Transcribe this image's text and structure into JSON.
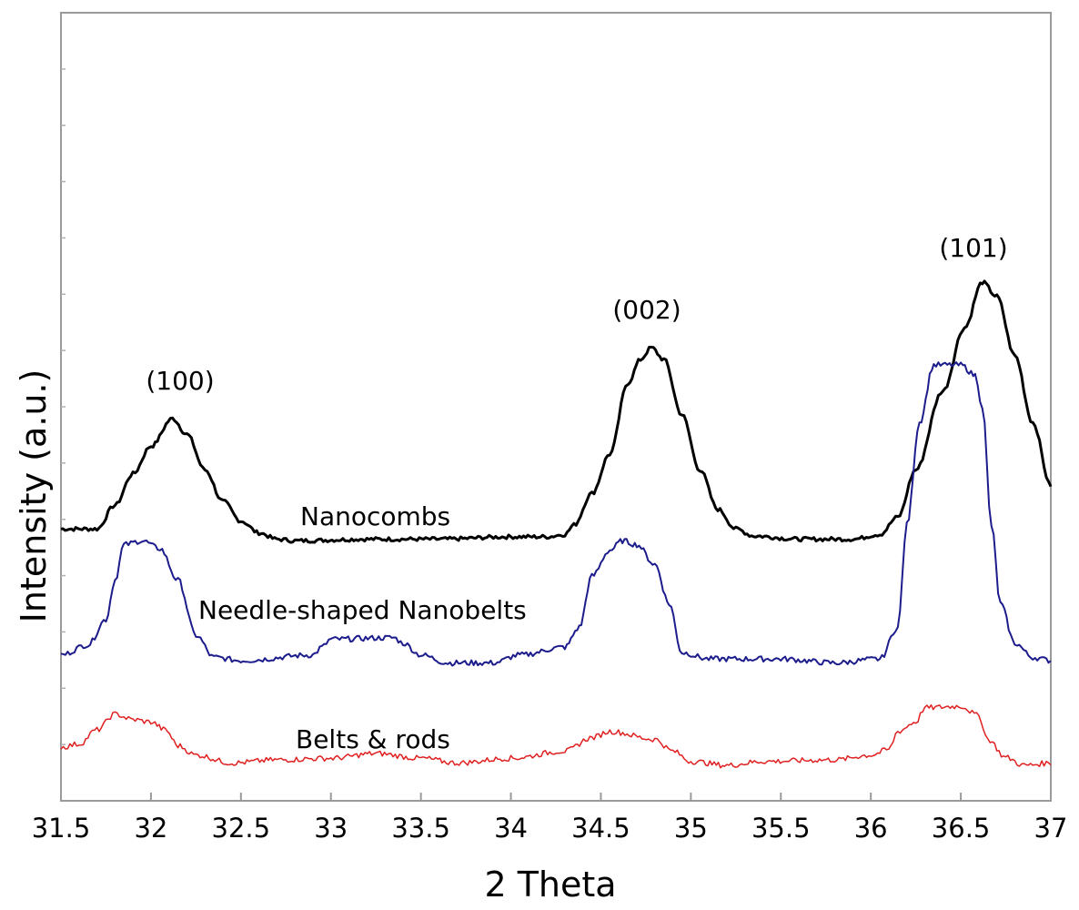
{
  "chart_data": {
    "type": "line",
    "title": "",
    "xlabel": "2 Theta",
    "ylabel": "Intensity (a.u.)",
    "xlim": [
      31.5,
      37
    ],
    "ylim": [
      0,
      100
    ],
    "xticks": [
      "31.5",
      "32",
      "32.5",
      "33",
      "33.5",
      "34",
      "34.5",
      "35",
      "35.5",
      "36",
      "36.5",
      "37"
    ],
    "grid": false,
    "series": [
      {
        "name": "Nanocombs",
        "label": "Nanocombs",
        "color": "#000000",
        "width": 3,
        "points": [
          [
            31.5,
            34.5
          ],
          [
            31.7,
            34.5
          ],
          [
            31.8,
            37.5
          ],
          [
            31.9,
            41.5
          ],
          [
            32.0,
            45.0
          ],
          [
            32.12,
            48.5
          ],
          [
            32.2,
            46.5
          ],
          [
            32.3,
            42.0
          ],
          [
            32.4,
            38.0
          ],
          [
            32.5,
            35.5
          ],
          [
            32.6,
            34.0
          ],
          [
            32.7,
            33.2
          ],
          [
            32.8,
            33.0
          ],
          [
            33.2,
            33.2
          ],
          [
            33.6,
            33.2
          ],
          [
            34.0,
            33.5
          ],
          [
            34.2,
            33.5
          ],
          [
            34.3,
            33.8
          ],
          [
            34.35,
            35.0
          ],
          [
            34.45,
            39.0
          ],
          [
            34.55,
            44.0
          ],
          [
            34.65,
            53.0
          ],
          [
            34.72,
            56.0
          ],
          [
            34.78,
            57.5
          ],
          [
            34.85,
            56.0
          ],
          [
            34.95,
            49.0
          ],
          [
            35.05,
            42.0
          ],
          [
            35.15,
            37.0
          ],
          [
            35.25,
            34.5
          ],
          [
            35.35,
            33.6
          ],
          [
            35.6,
            33.2
          ],
          [
            35.9,
            33.2
          ],
          [
            36.05,
            33.8
          ],
          [
            36.15,
            36.0
          ],
          [
            36.25,
            42.0
          ],
          [
            36.4,
            52.0
          ],
          [
            36.52,
            60.0
          ],
          [
            36.62,
            65.8
          ],
          [
            36.7,
            64.0
          ],
          [
            36.8,
            56.5
          ],
          [
            36.9,
            48.0
          ],
          [
            37.0,
            40.0
          ]
        ]
      },
      {
        "name": "Needle-shaped Nanobelts",
        "label": "Needle-shaped Nanobelts",
        "color": "#1c1c8c",
        "width": 2,
        "points": [
          [
            31.5,
            18.5
          ],
          [
            31.65,
            19.8
          ],
          [
            31.75,
            23.0
          ],
          [
            31.8,
            28.0
          ],
          [
            31.85,
            32.5
          ],
          [
            31.95,
            33.0
          ],
          [
            32.05,
            32.0
          ],
          [
            32.15,
            28.0
          ],
          [
            32.25,
            21.0
          ],
          [
            32.35,
            18.2
          ],
          [
            32.5,
            17.8
          ],
          [
            32.9,
            18.5
          ],
          [
            32.95,
            19.5
          ],
          [
            33.0,
            20.5
          ],
          [
            33.35,
            20.7
          ],
          [
            33.4,
            20.0
          ],
          [
            33.5,
            18.5
          ],
          [
            33.65,
            17.5
          ],
          [
            33.9,
            17.5
          ],
          [
            34.05,
            18.5
          ],
          [
            34.3,
            19.5
          ],
          [
            34.38,
            22.0
          ],
          [
            34.45,
            28.5
          ],
          [
            34.55,
            31.8
          ],
          [
            34.62,
            33.0
          ],
          [
            34.7,
            32.5
          ],
          [
            34.8,
            30.0
          ],
          [
            34.88,
            25.0
          ],
          [
            34.95,
            18.8
          ],
          [
            35.1,
            18.0
          ],
          [
            35.5,
            18.0
          ],
          [
            35.8,
            17.5
          ],
          [
            36.05,
            18.0
          ],
          [
            36.15,
            22.0
          ],
          [
            36.2,
            35.0
          ],
          [
            36.27,
            48.0
          ],
          [
            36.35,
            55.3
          ],
          [
            36.5,
            55.3
          ],
          [
            36.58,
            54.0
          ],
          [
            36.62,
            50.0
          ],
          [
            36.67,
            35.0
          ],
          [
            36.72,
            25.0
          ],
          [
            36.8,
            20.0
          ],
          [
            36.9,
            18.2
          ],
          [
            37.0,
            17.8
          ]
        ]
      },
      {
        "name": "Belts & rods",
        "label": "Belts & rods",
        "color": "#e02020",
        "width": 1.5,
        "points": [
          [
            31.5,
            6.8
          ],
          [
            31.6,
            7.2
          ],
          [
            31.7,
            9.0
          ],
          [
            31.8,
            11.0
          ],
          [
            31.9,
            10.3
          ],
          [
            32.0,
            10.0
          ],
          [
            32.08,
            9.0
          ],
          [
            32.15,
            7.0
          ],
          [
            32.25,
            5.8
          ],
          [
            32.45,
            4.8
          ],
          [
            32.7,
            5.2
          ],
          [
            33.0,
            5.4
          ],
          [
            33.25,
            6.0
          ],
          [
            33.5,
            5.4
          ],
          [
            33.7,
            4.8
          ],
          [
            34.0,
            5.4
          ],
          [
            34.3,
            6.3
          ],
          [
            34.45,
            8.0
          ],
          [
            34.55,
            8.8
          ],
          [
            34.8,
            7.8
          ],
          [
            34.9,
            6.3
          ],
          [
            35.0,
            5.0
          ],
          [
            35.2,
            4.5
          ],
          [
            35.4,
            5.0
          ],
          [
            35.8,
            5.2
          ],
          [
            36.0,
            5.8
          ],
          [
            36.1,
            6.5
          ],
          [
            36.15,
            8.8
          ],
          [
            36.25,
            10.0
          ],
          [
            36.3,
            11.8
          ],
          [
            36.5,
            12.0
          ],
          [
            36.6,
            10.8
          ],
          [
            36.65,
            7.8
          ],
          [
            36.75,
            5.5
          ],
          [
            36.85,
            4.5
          ],
          [
            37.0,
            4.8
          ]
        ]
      }
    ],
    "annotations": [
      "(100)",
      "(002)",
      "(101)"
    ]
  }
}
